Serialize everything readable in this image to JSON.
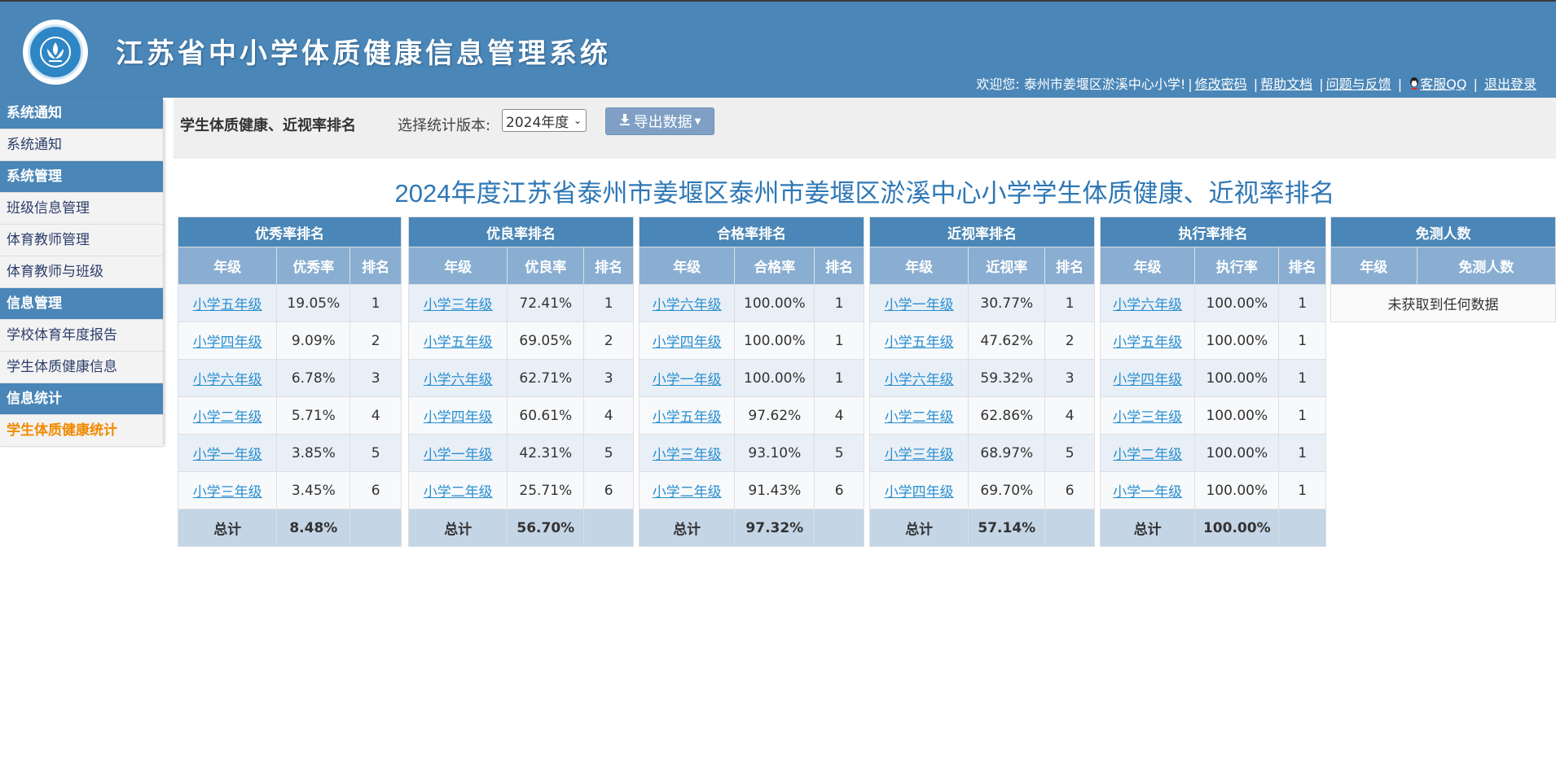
{
  "app": {
    "title": "江苏省中小学体质健康信息管理系统"
  },
  "topbar": {
    "welcome": "欢迎您: 泰州市姜堰区淤溪中心小学!",
    "change_password": "修改密码",
    "help_docs": "帮助文档",
    "feedback": "问题与反馈",
    "service_qq": "客服QQ",
    "logout": "退出登录"
  },
  "sidebar": {
    "groups": [
      {
        "label": "系统通知",
        "items": [
          "系统通知"
        ]
      },
      {
        "label": "系统管理",
        "items": [
          "班级信息管理",
          "体育教师管理",
          "体育教师与班级"
        ]
      },
      {
        "label": "信息管理",
        "items": [
          "学校体育年度报告",
          "学生体质健康信息"
        ]
      },
      {
        "label": "信息统计",
        "items": [
          "学生体质健康统计"
        ]
      }
    ]
  },
  "toolbar": {
    "title": "学生体质健康、近视率排名",
    "version_label": "选择统计版本:",
    "version_value": "2024年度",
    "export_label": "导出数据"
  },
  "page_title": "2024年度江苏省泰州市姜堰区泰州市姜堰区淤溪中心小学学生体质健康、近视率排名",
  "tables": {
    "excellent": {
      "caption": "优秀率排名",
      "headers": [
        "年级",
        "优秀率",
        "排名"
      ],
      "rows": [
        [
          "小学五年级",
          "19.05%",
          "1"
        ],
        [
          "小学四年级",
          "9.09%",
          "2"
        ],
        [
          "小学六年级",
          "6.78%",
          "3"
        ],
        [
          "小学二年级",
          "5.71%",
          "4"
        ],
        [
          "小学一年级",
          "3.85%",
          "5"
        ],
        [
          "小学三年级",
          "3.45%",
          "6"
        ]
      ],
      "total": [
        "总计",
        "8.48%",
        ""
      ]
    },
    "good": {
      "caption": "优良率排名",
      "headers": [
        "年级",
        "优良率",
        "排名"
      ],
      "rows": [
        [
          "小学三年级",
          "72.41%",
          "1"
        ],
        [
          "小学五年级",
          "69.05%",
          "2"
        ],
        [
          "小学六年级",
          "62.71%",
          "3"
        ],
        [
          "小学四年级",
          "60.61%",
          "4"
        ],
        [
          "小学一年级",
          "42.31%",
          "5"
        ],
        [
          "小学二年级",
          "25.71%",
          "6"
        ]
      ],
      "total": [
        "总计",
        "56.70%",
        ""
      ]
    },
    "pass": {
      "caption": "合格率排名",
      "headers": [
        "年级",
        "合格率",
        "排名"
      ],
      "rows": [
        [
          "小学六年级",
          "100.00%",
          "1"
        ],
        [
          "小学四年级",
          "100.00%",
          "1"
        ],
        [
          "小学一年级",
          "100.00%",
          "1"
        ],
        [
          "小学五年级",
          "97.62%",
          "4"
        ],
        [
          "小学三年级",
          "93.10%",
          "5"
        ],
        [
          "小学二年级",
          "91.43%",
          "6"
        ]
      ],
      "total": [
        "总计",
        "97.32%",
        ""
      ]
    },
    "myopia": {
      "caption": "近视率排名",
      "headers": [
        "年级",
        "近视率",
        "排名"
      ],
      "rows": [
        [
          "小学一年级",
          "30.77%",
          "1"
        ],
        [
          "小学五年级",
          "47.62%",
          "2"
        ],
        [
          "小学六年级",
          "59.32%",
          "3"
        ],
        [
          "小学二年级",
          "62.86%",
          "4"
        ],
        [
          "小学三年级",
          "68.97%",
          "5"
        ],
        [
          "小学四年级",
          "69.70%",
          "6"
        ]
      ],
      "total": [
        "总计",
        "57.14%",
        ""
      ]
    },
    "execution": {
      "caption": "执行率排名",
      "headers": [
        "年级",
        "执行率",
        "排名"
      ],
      "rows": [
        [
          "小学六年级",
          "100.00%",
          "1"
        ],
        [
          "小学五年级",
          "100.00%",
          "1"
        ],
        [
          "小学四年级",
          "100.00%",
          "1"
        ],
        [
          "小学三年级",
          "100.00%",
          "1"
        ],
        [
          "小学二年级",
          "100.00%",
          "1"
        ],
        [
          "小学一年级",
          "100.00%",
          "1"
        ]
      ],
      "total": [
        "总计",
        "100.00%",
        ""
      ]
    },
    "exempt": {
      "caption": "免测人数",
      "headers": [
        "年级",
        "免测人数"
      ],
      "empty_message": "未获取到任何数据"
    }
  },
  "colors": {
    "header_bg": "#4a86b7",
    "link": "#2a8fd0",
    "active_menu": "#f08a00",
    "title_blue": "#2e77b5"
  }
}
